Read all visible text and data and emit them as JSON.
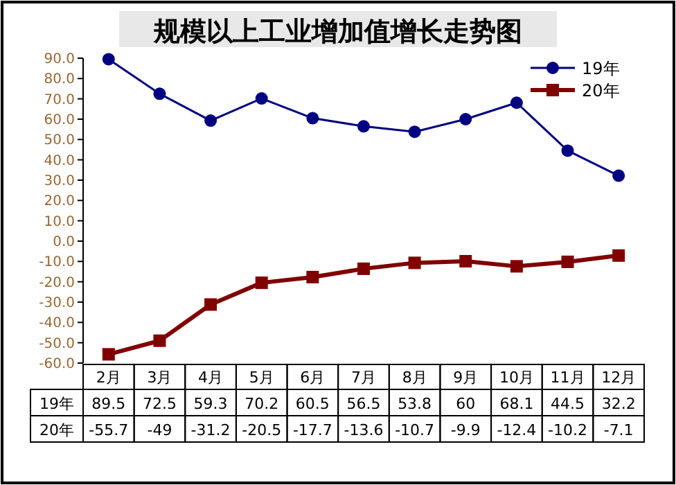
{
  "chart_data": {
    "type": "line",
    "title": "规模以上工业增加值增长走势图",
    "categories": [
      "2月",
      "3月",
      "4月",
      "5月",
      "6月",
      "7月",
      "8月",
      "9月",
      "10月",
      "11月",
      "12月"
    ],
    "series": [
      {
        "name": "19年",
        "color": "#000080",
        "marker": "circle",
        "values": [
          89.5,
          72.5,
          59.3,
          70.2,
          60.5,
          56.5,
          53.8,
          60,
          68.1,
          44.5,
          32.2
        ]
      },
      {
        "name": "20年",
        "color": "#800000",
        "marker": "square",
        "values": [
          -55.7,
          -49,
          -31.2,
          -20.5,
          -17.7,
          -13.6,
          -10.7,
          -9.9,
          -12.4,
          -10.2,
          -7.1
        ]
      }
    ],
    "ylim": [
      -60,
      90
    ],
    "yticks": [
      {
        "value": 90,
        "label": "90.0"
      },
      {
        "value": 80,
        "label": "80.0"
      },
      {
        "value": 70,
        "label": "70.0"
      },
      {
        "value": 60,
        "label": "60.0"
      },
      {
        "value": 50,
        "label": "50.0"
      },
      {
        "value": 40,
        "label": "40.0"
      },
      {
        "value": 30,
        "label": "30.0"
      },
      {
        "value": 20,
        "label": "20.0"
      },
      {
        "value": 10,
        "label": "10.0"
      },
      {
        "value": 0,
        "label": "0.0"
      },
      {
        "value": -10,
        "label": "-10.0"
      },
      {
        "value": -20,
        "label": "-20.0"
      },
      {
        "value": -30,
        "label": "-30.0"
      },
      {
        "value": -40,
        "label": "-40.0"
      },
      {
        "value": -50,
        "label": "-50.0"
      },
      {
        "value": -60,
        "label": "-60.0"
      }
    ],
    "data_labels": true,
    "legend": "top right",
    "grid": false,
    "line_style": "solid"
  }
}
